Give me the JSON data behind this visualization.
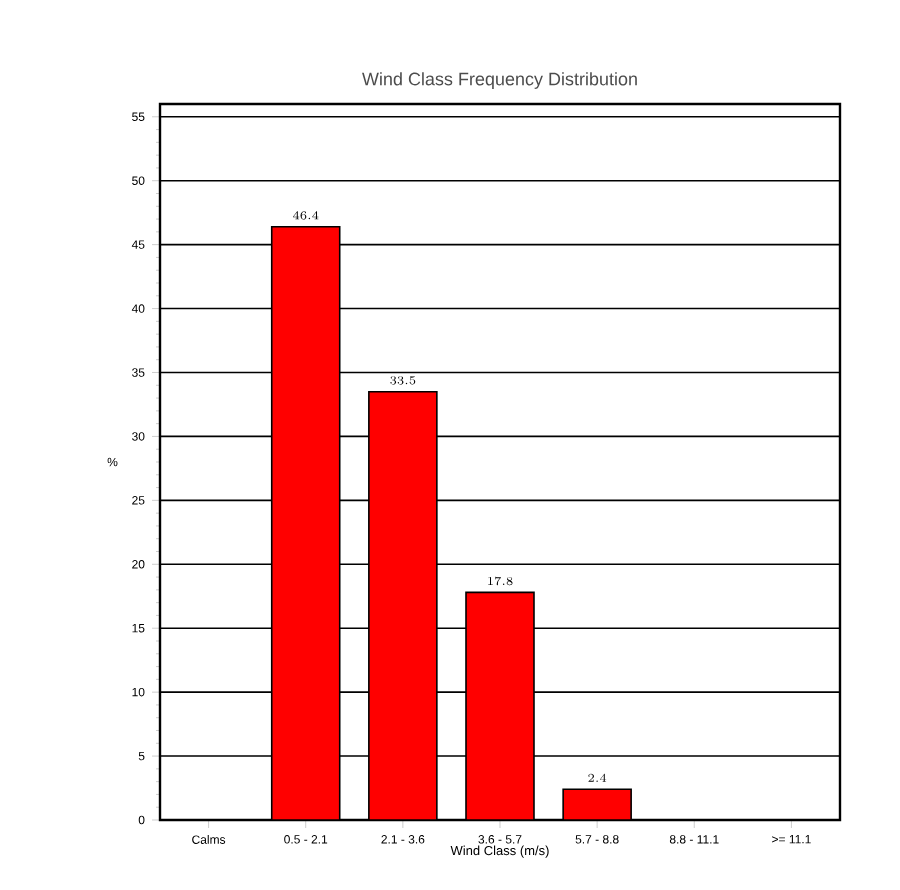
{
  "chart_data": {
    "type": "bar",
    "title": "Wind Class Frequency Distribution",
    "xlabel": "Wind Class (m/s)",
    "ylabel": "%",
    "categories": [
      "Calms",
      "0.5 - 2.1",
      "2.1 - 3.6",
      "3.6 - 5.7",
      "5.7 - 8.8",
      "8.8 - 11.1",
      ">= 11.1"
    ],
    "values": [
      null,
      46.4,
      33.5,
      17.8,
      2.4,
      null,
      null
    ],
    "color": "#ff0000",
    "ylim": [
      0,
      56
    ],
    "yticks": [
      0,
      5,
      10,
      15,
      20,
      25,
      30,
      35,
      40,
      45,
      50,
      55
    ],
    "grid": "y",
    "data_labels": true
  }
}
